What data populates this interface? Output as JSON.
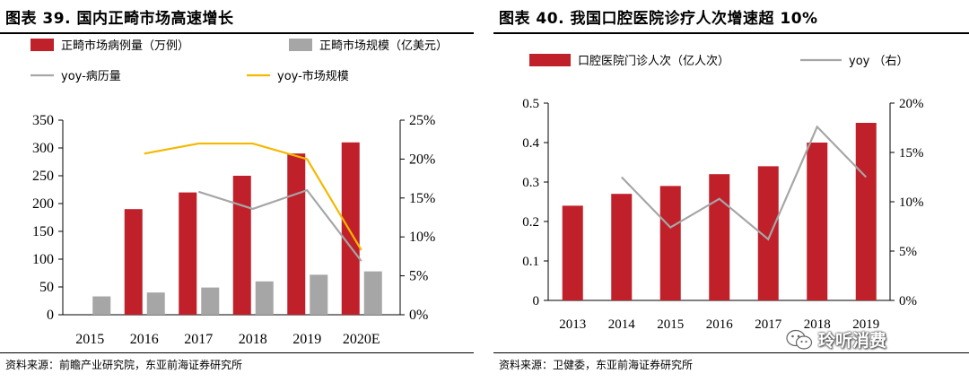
{
  "left_panel": {
    "title": "图表 39. 国内正畸市场高速增长",
    "source": "资料来源：前瞻产业研究院，东亚前海证券研究所"
  },
  "right_panel": {
    "title": "图表 40. 我国口腔医院诊疗人次增速超 10%",
    "source": "资料来源：卫健委，东亚前海证券研究所"
  },
  "watermark": {
    "text": "玲听消费",
    "icon": "wechat-icon"
  },
  "chart_data": [
    {
      "type": "bar",
      "categories": [
        "2015",
        "2016",
        "2017",
        "2018",
        "2019",
        "2020E"
      ],
      "series": [
        {
          "name": "正畸市场病例量（万例）",
          "kind": "bar",
          "axis": "left",
          "color": "#C0202A",
          "values": [
            null,
            190,
            220,
            250,
            290,
            310
          ]
        },
        {
          "name": "正畸市场规模（亿美元）",
          "kind": "bar",
          "axis": "left",
          "color": "#A6A6A6",
          "values": [
            33,
            40,
            49,
            60,
            72,
            78
          ]
        },
        {
          "name": "yoy-病历量",
          "kind": "line",
          "axis": "right",
          "color": "#A6A6A6",
          "values": [
            null,
            null,
            0.158,
            0.136,
            0.16,
            0.069
          ]
        },
        {
          "name": "yoy-市场规模",
          "kind": "line",
          "axis": "right",
          "color": "#F5B800",
          "values": [
            null,
            0.207,
            0.22,
            0.22,
            0.2,
            0.083
          ]
        }
      ],
      "y_left": {
        "min": 0,
        "max": 350,
        "ticks": [
          "0",
          "50",
          "100",
          "150",
          "200",
          "250",
          "300",
          "350"
        ]
      },
      "y_right": {
        "min": 0,
        "max": 0.25,
        "ticks": [
          "0%",
          "5%",
          "10%",
          "15%",
          "20%",
          "25%"
        ]
      },
      "grid": false
    },
    {
      "type": "bar",
      "categories": [
        "2013",
        "2014",
        "2015",
        "2016",
        "2017",
        "2018",
        "2019"
      ],
      "series": [
        {
          "name": "口腔医院门诊人次（亿人次）",
          "kind": "bar",
          "axis": "left",
          "color": "#C0202A",
          "values": [
            0.24,
            0.27,
            0.29,
            0.32,
            0.34,
            0.4,
            0.45
          ]
        },
        {
          "name": "yoy （右）",
          "kind": "line",
          "axis": "right",
          "color": "#A6A6A6",
          "values": [
            null,
            0.125,
            0.074,
            0.103,
            0.062,
            0.176,
            0.125
          ]
        }
      ],
      "y_left": {
        "min": 0,
        "max": 0.5,
        "ticks": [
          "0",
          "0.1",
          "0.2",
          "0.3",
          "0.4",
          "0.5"
        ]
      },
      "y_right": {
        "min": 0,
        "max": 0.2,
        "ticks": [
          "0%",
          "5%",
          "10%",
          "15%",
          "20%"
        ]
      },
      "grid": false
    }
  ]
}
